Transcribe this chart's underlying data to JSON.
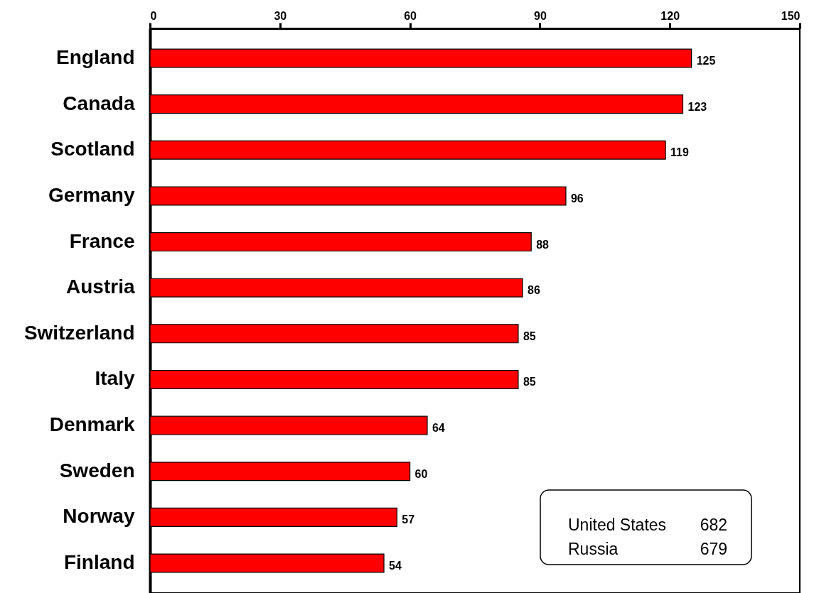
{
  "chart_data": {
    "type": "bar",
    "orientation": "horizontal",
    "categories": [
      "England",
      "Canada",
      "Scotland",
      "Germany",
      "France",
      "Austria",
      "Switzerland",
      "Italy",
      "Denmark",
      "Sweden",
      "Norway",
      "Finland"
    ],
    "values": [
      125,
      123,
      119,
      96,
      88,
      86,
      85,
      85,
      64,
      60,
      57,
      54
    ],
    "color": "#ff0000",
    "xlim": [
      0,
      150
    ],
    "xticks": [
      0,
      30,
      60,
      90,
      120,
      150
    ],
    "data_labels": true,
    "grid": false,
    "annotations": [
      "United States   682",
      "Russia   679"
    ]
  }
}
